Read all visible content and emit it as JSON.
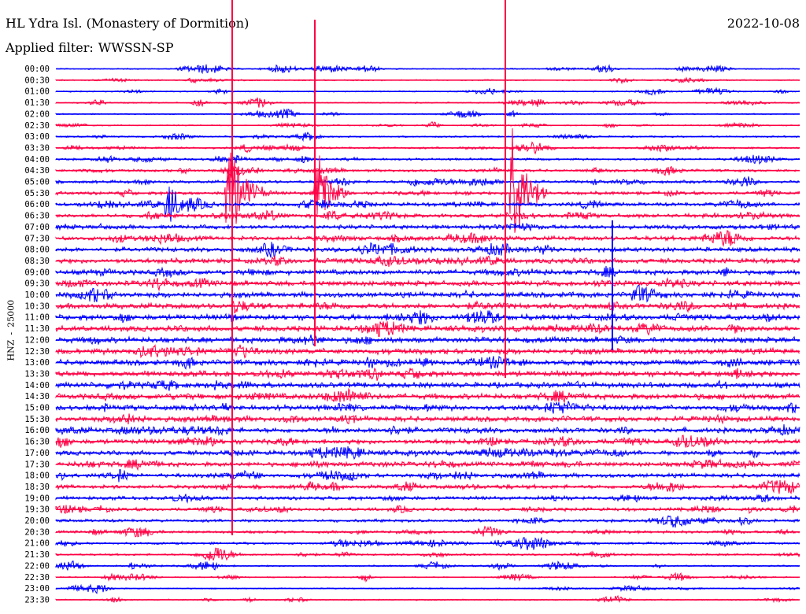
{
  "header": {
    "station": "HL Ydra Isl. (Monastery of Dormition)",
    "date": "2022-10-08",
    "filter_label": "Applied filter:",
    "filter_name": "WWSSN-SP"
  },
  "axis": {
    "channel": "HNZ",
    "dash": "-",
    "scale": "25000"
  },
  "colors": {
    "trace_even": "#0000ff",
    "trace_odd": "#ff0044",
    "background": "#ffffff"
  },
  "chart_data": {
    "type": "helicorder",
    "ylabel": "HNZ - 25000",
    "title": "HL Ydra Isl. (Monastery of Dormition)",
    "date": "2022-10-08",
    "filter": "WWSSN-SP",
    "row_minutes": 30,
    "rows": [
      "00:00",
      "00:30",
      "01:00",
      "01:30",
      "02:00",
      "02:30",
      "03:00",
      "03:30",
      "04:00",
      "04:30",
      "05:00",
      "05:30",
      "06:00",
      "06:30",
      "07:00",
      "07:30",
      "08:00",
      "08:30",
      "09:00",
      "09:30",
      "10:00",
      "10:30",
      "11:00",
      "11:30",
      "12:00",
      "12:30",
      "13:00",
      "13:30",
      "14:00",
      "14:30",
      "15:00",
      "15:30",
      "16:00",
      "16:30",
      "17:00",
      "17:30",
      "18:00",
      "18:30",
      "19:00",
      "19:30",
      "20:00",
      "20:30",
      "21:00",
      "21:30",
      "22:00",
      "22:30",
      "23:00",
      "23:30"
    ],
    "events": [
      {
        "row": "05:30",
        "minute": 6.9,
        "amplitude": 1.0,
        "description": "large event"
      },
      {
        "row": "05:30",
        "minute": 10.5,
        "amplitude": 0.85,
        "description": "large event"
      },
      {
        "row": "05:30",
        "minute": 18.4,
        "amplitude": 1.0,
        "description": "large event"
      },
      {
        "row": "06:00",
        "minute": 4.5,
        "amplitude": 0.45,
        "description": "event burst"
      },
      {
        "row": "10:00",
        "minute": 23.3,
        "amplitude": 0.35,
        "description": "regional event"
      },
      {
        "row": "10:30",
        "minute": 7.2,
        "amplitude": 0.3,
        "description": "event"
      },
      {
        "row": "22:00",
        "minute": 3.0,
        "amplitude": 0.2,
        "description": "local event"
      }
    ]
  }
}
